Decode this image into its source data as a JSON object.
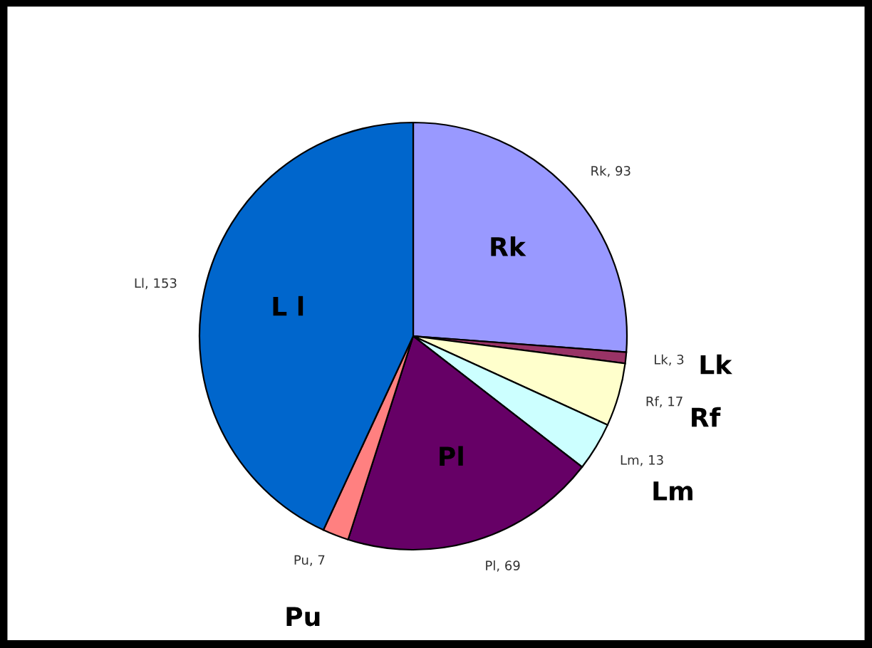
{
  "chart_data": {
    "type": "pie",
    "categories": [
      "Rk",
      "Lk",
      "Rf",
      "Lm",
      "Pl",
      "Pu",
      "L l"
    ],
    "values": [
      93,
      3,
      17,
      13,
      69,
      7,
      153
    ],
    "colors": [
      "#9999ff",
      "#993366",
      "#ffffcc",
      "#ccffff",
      "#660066",
      "#ff8080",
      "#0066cc"
    ],
    "value_labels": [
      "Rk, 93",
      "Lk, 3",
      "Rf, 17",
      "Lm, 13",
      "Pl, 69",
      "Pu, 7",
      "Ll, 153"
    ],
    "legend": false
  }
}
